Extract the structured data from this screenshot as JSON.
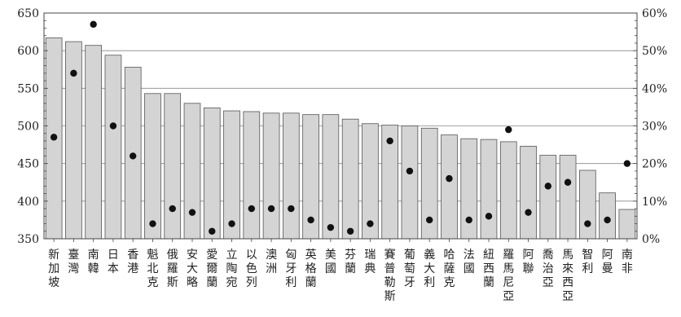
{
  "chart_data": {
    "type": "bar",
    "categories": [
      "新加坡",
      "臺灣",
      "南韓",
      "日本",
      "香港",
      "魁北克",
      "俄羅斯",
      "安大略",
      "愛爾蘭",
      "立陶宛",
      "以色列",
      "澳洲",
      "匈牙利",
      "英格蘭",
      "美國",
      "芬蘭",
      "瑞典",
      "賽普勒斯",
      "葡萄牙",
      "義大利",
      "哈薩克",
      "法國",
      "紐西蘭",
      "羅馬尼亞",
      "阿聯",
      "喬治亞",
      "馬來西亞",
      "智利",
      "阿曼",
      "南非"
    ],
    "series": [
      {
        "axis": "left",
        "type": "bar",
        "values": [
          617,
          612,
          607,
          594,
          578,
          543,
          543,
          530,
          524,
          520,
          519,
          517,
          517,
          515,
          515,
          509,
          503,
          501,
          500,
          497,
          488,
          483,
          482,
          479,
          473,
          461,
          461,
          441,
          411,
          389
        ]
      },
      {
        "axis": "right",
        "type": "scatter",
        "values": [
          27,
          44,
          57,
          30,
          22,
          4,
          8,
          7,
          2,
          4,
          8,
          8,
          8,
          5,
          3,
          2,
          4,
          26,
          18,
          5,
          16,
          5,
          6,
          29,
          7,
          14,
          15,
          4,
          5,
          20
        ]
      }
    ],
    "y_left": {
      "ylim": [
        350,
        650
      ],
      "ticks": [
        "350",
        "400",
        "450",
        "500",
        "550",
        "600",
        "650"
      ]
    },
    "y_right": {
      "ylim": [
        0,
        60
      ],
      "ticks": [
        "0%",
        "10%",
        "20%",
        "30%",
        "40%",
        "50%",
        "60%"
      ]
    },
    "grid": true,
    "colors": {
      "bar_fill": "#d4d4d4",
      "bar_stroke": "#555555",
      "dot": "#111111",
      "grid": "#888888"
    }
  }
}
